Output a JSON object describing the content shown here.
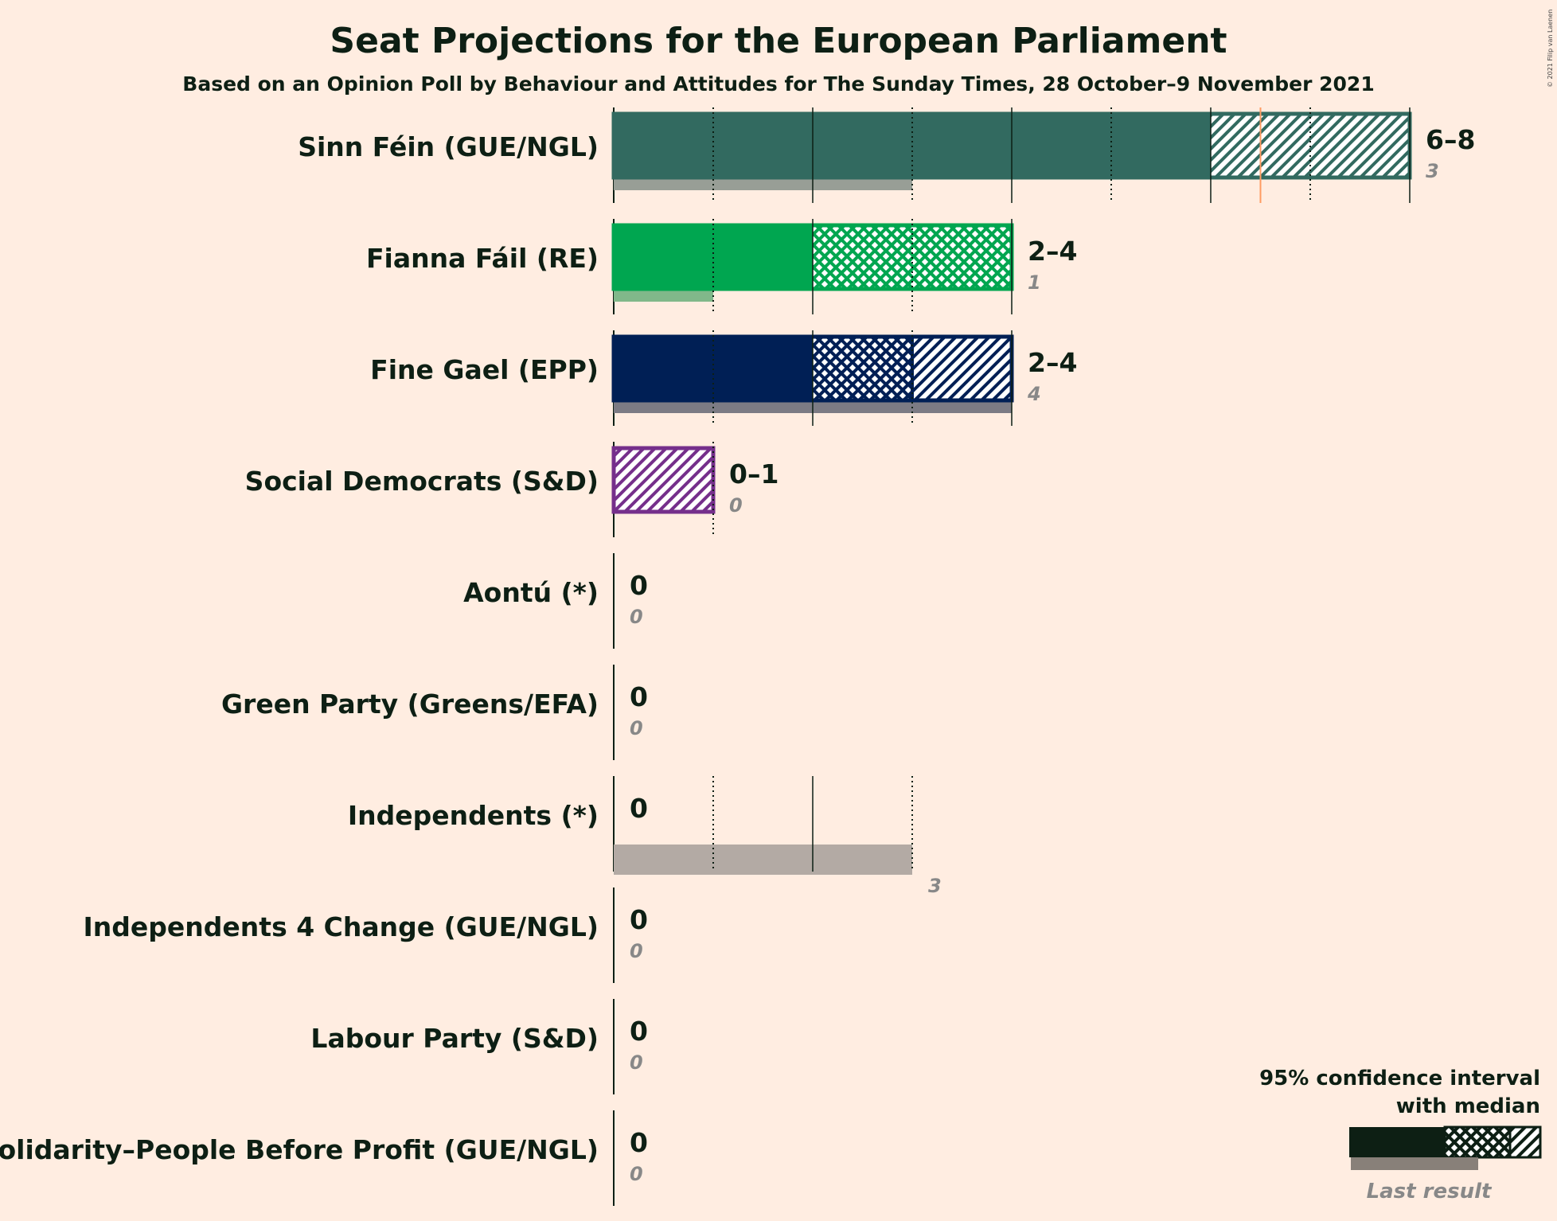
{
  "title": "Seat Projections for the European Parliament",
  "subtitle": "Based on an Opinion Poll by Behaviour and Attitudes for The Sunday Times, 28 October–9 November 2021",
  "copyright": "© 2021 Filip van Laenen",
  "legend": {
    "ci_line1": "95% confidence interval",
    "ci_line2": "with median",
    "last_result": "Last result"
  },
  "majority_seat": 6.5,
  "chart_data": {
    "type": "bar",
    "orientation": "horizontal",
    "title": "Seat Projections for the European Parliament",
    "subtitle": "Based on an Opinion Poll by Behaviour and Attitudes for The Sunday Times, 28 October–9 November 2021",
    "xlim": [
      0,
      8
    ],
    "categories": [
      "Sinn Féin (GUE/NGL)",
      "Fianna Fáil (RE)",
      "Fine Gael (EPP)",
      "Social Democrats (S&D)",
      "Aontú (*)",
      "Green Party (Greens/EFA)",
      "Independents (*)",
      "Independents 4 Change (GUE/NGL)",
      "Labour Party (S&D)",
      "Solidarity–People Before Profit (GUE/NGL)"
    ],
    "parties": [
      {
        "name": "Sinn Féin (GUE/NGL)",
        "low": 6,
        "median": 6,
        "high": 8,
        "last": 3,
        "range_label": "6–8",
        "last_label": "3",
        "color": "#326a60",
        "last_color": "#989e96"
      },
      {
        "name": "Fianna Fáil (RE)",
        "low": 2,
        "median": 4,
        "high": 4,
        "last": 1,
        "range_label": "2–4",
        "last_label": "1",
        "color": "#00a650",
        "last_color": "#80b88a"
      },
      {
        "name": "Fine Gael (EPP)",
        "low": 2,
        "median": 3,
        "high": 4,
        "last": 4,
        "range_label": "2–4",
        "last_label": "4",
        "color": "#001f55",
        "last_color": "#7c7b84"
      },
      {
        "name": "Social Democrats (S&D)",
        "low": 0,
        "median": 0,
        "high": 1,
        "last": 0,
        "range_label": "0–1",
        "last_label": "0",
        "color": "#752f8b",
        "last_color": "#b095b3"
      },
      {
        "name": "Aontú (*)",
        "low": 0,
        "median": 0,
        "high": 0,
        "last": 0,
        "range_label": "0",
        "last_label": "0",
        "color": "#44532a",
        "last_color": "#999999"
      },
      {
        "name": "Green Party (Greens/EFA)",
        "low": 0,
        "median": 0,
        "high": 0,
        "last": 0,
        "range_label": "0",
        "last_label": "0",
        "color": "#44ad45",
        "last_color": "#999999"
      },
      {
        "name": "Independents (*)",
        "low": 0,
        "median": 0,
        "high": 0,
        "last": 3,
        "range_label": "0",
        "last_label": "3",
        "color": "#888888",
        "last_color": "#b3aaa4"
      },
      {
        "name": "Independents 4 Change (GUE/NGL)",
        "low": 0,
        "median": 0,
        "high": 0,
        "last": 0,
        "range_label": "0",
        "last_label": "0",
        "color": "#880000",
        "last_color": "#999999"
      },
      {
        "name": "Labour Party (S&D)",
        "low": 0,
        "median": 0,
        "high": 0,
        "last": 0,
        "range_label": "0",
        "last_label": "0",
        "color": "#e3001b",
        "last_color": "#999999"
      },
      {
        "name": "Solidarity–People Before Profit (GUE/NGL)",
        "low": 0,
        "median": 0,
        "high": 0,
        "last": 0,
        "range_label": "0",
        "last_label": "0",
        "color": "#e91d50",
        "last_color": "#999999"
      }
    ]
  }
}
